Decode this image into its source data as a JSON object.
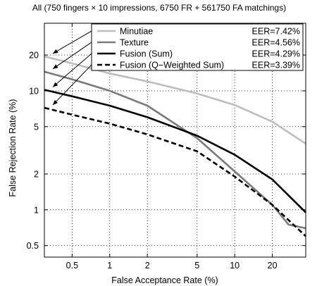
{
  "chart_data": {
    "type": "line",
    "title": "All (750 fingers × 10 impressions, 6750 FR + 561750 FA matchings)",
    "xlabel": "False Acceptance Rate (%)",
    "ylabel": "False Rejection Rate (%)",
    "x_scale": "log",
    "y_scale": "log",
    "xlim": [
      0.3,
      37
    ],
    "ylim": [
      0.4,
      37
    ],
    "x_ticks": [
      0.5,
      1,
      2,
      5,
      10,
      20
    ],
    "x_tick_labels": [
      "0.5",
      "1",
      "2",
      "5",
      "10",
      "20"
    ],
    "y_ticks": [
      0.5,
      1,
      2,
      5,
      10,
      20
    ],
    "y_tick_labels": [
      "0.5",
      "1",
      "2",
      "5",
      "10",
      "20"
    ],
    "grid": true,
    "legend_position": "top-right",
    "series": [
      {
        "name": "Minutiae",
        "eer_label": "EER=7.42%",
        "color": "#bdbdbd",
        "dash": "solid",
        "x": [
          0.3,
          0.5,
          1,
          2,
          5,
          10,
          20,
          37
        ],
        "y": [
          19.5,
          17,
          14,
          12,
          9.5,
          7.6,
          5.5,
          3.6
        ]
      },
      {
        "name": "Texture",
        "eer_label": "EER=4.56%",
        "color": "#7a7a7a",
        "dash": "solid",
        "x": [
          0.3,
          0.5,
          1,
          2,
          5,
          10,
          20,
          27,
          37
        ],
        "y": [
          14.5,
          12.5,
          10,
          7.5,
          4,
          2.1,
          1.1,
          0.75,
          0.7
        ]
      },
      {
        "name": "Fusion (Sum)",
        "eer_label": "EER=4.29%",
        "color": "#000000",
        "dash": "solid",
        "x": [
          0.3,
          0.5,
          1,
          2,
          5,
          10,
          20,
          37
        ],
        "y": [
          10.2,
          9,
          7.5,
          6,
          4.2,
          2.9,
          1.8,
          0.95
        ]
      },
      {
        "name": "Fusion (Q−Weighted Sum)",
        "eer_label": "EER=3.39%",
        "color": "#000000",
        "dash": "dashed",
        "x": [
          0.3,
          0.5,
          1,
          2,
          5,
          10,
          20,
          37
        ],
        "y": [
          7.2,
          6.3,
          5.3,
          4.3,
          3.1,
          1.9,
          1.1,
          0.6
        ]
      }
    ]
  }
}
